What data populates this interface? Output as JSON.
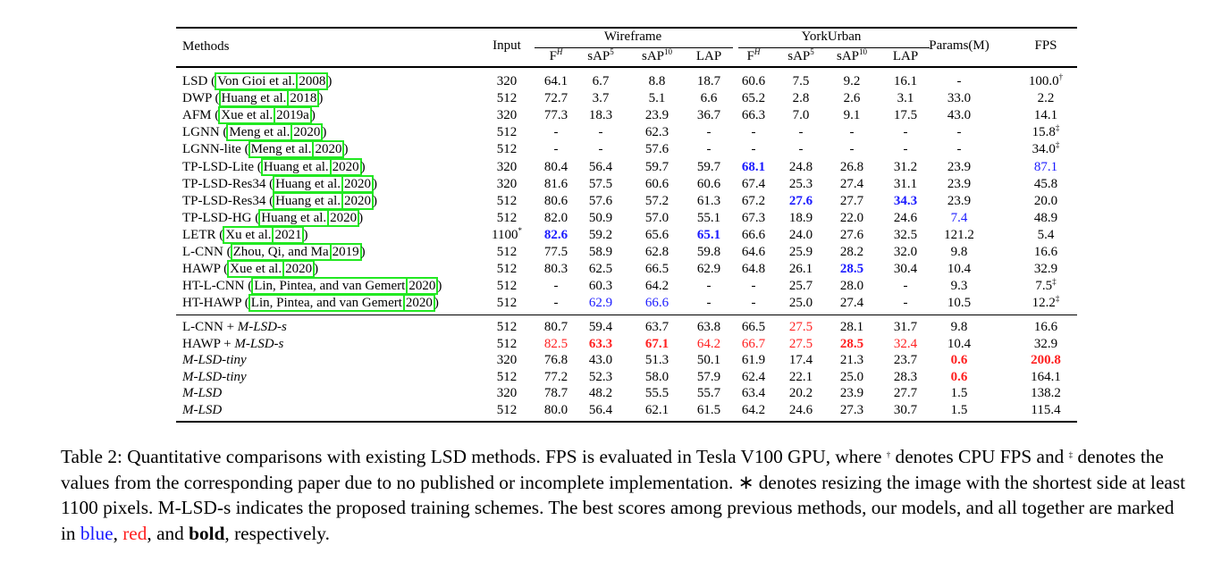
{
  "table": {
    "headers": {
      "methods": "Methods",
      "input": "Input",
      "wireframe": "Wireframe",
      "yorkurban": "YorkUrban",
      "params": "Params(M)",
      "fps": "FPS",
      "sub": [
        {
          "base": "F",
          "sup": "H"
        },
        {
          "base": "sAP",
          "sup": "5"
        },
        {
          "base": "sAP",
          "sup": "10"
        },
        {
          "base": "LAP",
          "sup": ""
        },
        {
          "base": "F",
          "sup": "H"
        },
        {
          "base": "sAP",
          "sup": "5"
        },
        {
          "base": "sAP",
          "sup": "10"
        },
        {
          "base": "LAP",
          "sup": ""
        }
      ]
    },
    "section1": [
      {
        "name": "LSD",
        "author": "Von Gioi et al.",
        "year": "2008",
        "cells": [
          {
            "v": "320"
          },
          {
            "v": "64.1"
          },
          {
            "v": "6.7"
          },
          {
            "v": "8.8"
          },
          {
            "v": "18.7"
          },
          {
            "v": "60.6"
          },
          {
            "v": "7.5"
          },
          {
            "v": "9.2"
          },
          {
            "v": "16.1"
          },
          {
            "v": "-"
          },
          {
            "v": "100.0",
            "sup": "†"
          }
        ]
      },
      {
        "name": "DWP",
        "author": "Huang et al.",
        "year": "2018",
        "cells": [
          {
            "v": "512"
          },
          {
            "v": "72.7"
          },
          {
            "v": "3.7"
          },
          {
            "v": "5.1"
          },
          {
            "v": "6.6"
          },
          {
            "v": "65.2"
          },
          {
            "v": "2.8"
          },
          {
            "v": "2.6"
          },
          {
            "v": "3.1"
          },
          {
            "v": "33.0"
          },
          {
            "v": "2.2"
          }
        ]
      },
      {
        "name": "AFM",
        "author": "Xue et al.",
        "year": "2019a",
        "cells": [
          {
            "v": "320"
          },
          {
            "v": "77.3"
          },
          {
            "v": "18.3"
          },
          {
            "v": "23.9"
          },
          {
            "v": "36.7"
          },
          {
            "v": "66.3"
          },
          {
            "v": "7.0"
          },
          {
            "v": "9.1"
          },
          {
            "v": "17.5"
          },
          {
            "v": "43.0"
          },
          {
            "v": "14.1"
          }
        ]
      },
      {
        "name": "LGNN",
        "author": "Meng et al.",
        "year": "2020",
        "cells": [
          {
            "v": "512"
          },
          {
            "v": "-"
          },
          {
            "v": "-"
          },
          {
            "v": "62.3"
          },
          {
            "v": "-"
          },
          {
            "v": "-"
          },
          {
            "v": "-"
          },
          {
            "v": "-"
          },
          {
            "v": "-"
          },
          {
            "v": "-"
          },
          {
            "v": "15.8",
            "sup": "‡"
          }
        ]
      },
      {
        "name": "LGNN-lite",
        "author": "Meng et al.",
        "year": "2020",
        "cells": [
          {
            "v": "512"
          },
          {
            "v": "-"
          },
          {
            "v": "-"
          },
          {
            "v": "57.6"
          },
          {
            "v": "-"
          },
          {
            "v": "-"
          },
          {
            "v": "-"
          },
          {
            "v": "-"
          },
          {
            "v": "-"
          },
          {
            "v": "-"
          },
          {
            "v": "34.0",
            "sup": "‡"
          }
        ]
      },
      {
        "name": "TP-LSD-Lite",
        "author": "Huang et al.",
        "year": "2020",
        "cells": [
          {
            "v": "320"
          },
          {
            "v": "80.4"
          },
          {
            "v": "56.4"
          },
          {
            "v": "59.7"
          },
          {
            "v": "59.7"
          },
          {
            "v": "68.1",
            "s": "blue bold"
          },
          {
            "v": "24.8"
          },
          {
            "v": "26.8"
          },
          {
            "v": "31.2"
          },
          {
            "v": "23.9"
          },
          {
            "v": "87.1",
            "s": "blue"
          }
        ]
      },
      {
        "name": "TP-LSD-Res34",
        "author": "Huang et al.",
        "year": "2020",
        "cells": [
          {
            "v": "320"
          },
          {
            "v": "81.6"
          },
          {
            "v": "57.5"
          },
          {
            "v": "60.6"
          },
          {
            "v": "60.6"
          },
          {
            "v": "67.4"
          },
          {
            "v": "25.3"
          },
          {
            "v": "27.4"
          },
          {
            "v": "31.1"
          },
          {
            "v": "23.9"
          },
          {
            "v": "45.8"
          }
        ]
      },
      {
        "name": "TP-LSD-Res34",
        "author": "Huang et al.",
        "year": "2020",
        "cells": [
          {
            "v": "512"
          },
          {
            "v": "80.6"
          },
          {
            "v": "57.6"
          },
          {
            "v": "57.2"
          },
          {
            "v": "61.3"
          },
          {
            "v": "67.2"
          },
          {
            "v": "27.6",
            "s": "blue bold"
          },
          {
            "v": "27.7"
          },
          {
            "v": "34.3",
            "s": "blue bold"
          },
          {
            "v": "23.9"
          },
          {
            "v": "20.0"
          }
        ]
      },
      {
        "name": "TP-LSD-HG",
        "author": "Huang et al.",
        "year": "2020",
        "cells": [
          {
            "v": "512"
          },
          {
            "v": "82.0"
          },
          {
            "v": "50.9"
          },
          {
            "v": "57.0"
          },
          {
            "v": "55.1"
          },
          {
            "v": "67.3"
          },
          {
            "v": "18.9"
          },
          {
            "v": "22.0"
          },
          {
            "v": "24.6"
          },
          {
            "v": "7.4",
            "s": "blue"
          },
          {
            "v": "48.9"
          }
        ]
      },
      {
        "name": "LETR",
        "author": "Xu et al.",
        "year": "2021",
        "cells": [
          {
            "v": "1100",
            "sup": "*"
          },
          {
            "v": "82.6",
            "s": "blue bold"
          },
          {
            "v": "59.2"
          },
          {
            "v": "65.6"
          },
          {
            "v": "65.1",
            "s": "blue bold"
          },
          {
            "v": "66.6"
          },
          {
            "v": "24.0"
          },
          {
            "v": "27.6"
          },
          {
            "v": "32.5"
          },
          {
            "v": "121.2"
          },
          {
            "v": "5.4"
          }
        ]
      },
      {
        "name": "L-CNN",
        "author": "Zhou, Qi, and Ma",
        "year": "2019",
        "cells": [
          {
            "v": "512"
          },
          {
            "v": "77.5"
          },
          {
            "v": "58.9"
          },
          {
            "v": "62.8"
          },
          {
            "v": "59.8"
          },
          {
            "v": "64.6"
          },
          {
            "v": "25.9"
          },
          {
            "v": "28.2"
          },
          {
            "v": "32.0"
          },
          {
            "v": "9.8"
          },
          {
            "v": "16.6"
          }
        ]
      },
      {
        "name": "HAWP",
        "author": "Xue et al.",
        "year": "2020",
        "cells": [
          {
            "v": "512"
          },
          {
            "v": "80.3"
          },
          {
            "v": "62.5"
          },
          {
            "v": "66.5"
          },
          {
            "v": "62.9"
          },
          {
            "v": "64.8"
          },
          {
            "v": "26.1"
          },
          {
            "v": "28.5",
            "s": "blue bold"
          },
          {
            "v": "30.4"
          },
          {
            "v": "10.4"
          },
          {
            "v": "32.9"
          }
        ]
      },
      {
        "name": "HT-L-CNN",
        "author": "Lin, Pintea, and van Gemert",
        "year": "2020",
        "cells": [
          {
            "v": "512"
          },
          {
            "v": "-"
          },
          {
            "v": "60.3"
          },
          {
            "v": "64.2"
          },
          {
            "v": "-"
          },
          {
            "v": "-"
          },
          {
            "v": "25.7"
          },
          {
            "v": "28.0"
          },
          {
            "v": "-"
          },
          {
            "v": "9.3"
          },
          {
            "v": "7.5",
            "sup": "‡"
          }
        ]
      },
      {
        "name": "HT-HAWP",
        "author": "Lin, Pintea, and van Gemert",
        "year": "2020",
        "cells": [
          {
            "v": "512"
          },
          {
            "v": "-"
          },
          {
            "v": "62.9",
            "s": "blue"
          },
          {
            "v": "66.6",
            "s": "blue"
          },
          {
            "v": "-"
          },
          {
            "v": "-"
          },
          {
            "v": "25.0"
          },
          {
            "v": "27.4"
          },
          {
            "v": "-"
          },
          {
            "v": "10.5"
          },
          {
            "v": "12.2",
            "sup": "‡"
          }
        ]
      }
    ],
    "section2": [
      {
        "name": "L-CNN + ",
        "name_it": "M-LSD-s",
        "cells": [
          {
            "v": "512"
          },
          {
            "v": "80.7"
          },
          {
            "v": "59.4"
          },
          {
            "v": "63.7"
          },
          {
            "v": "63.8"
          },
          {
            "v": "66.5"
          },
          {
            "v": "27.5",
            "s": "red"
          },
          {
            "v": "28.1"
          },
          {
            "v": "31.7"
          },
          {
            "v": "9.8"
          },
          {
            "v": "16.6"
          }
        ]
      },
      {
        "name": "HAWP + ",
        "name_it": "M-LSD-s",
        "cells": [
          {
            "v": "512"
          },
          {
            "v": "82.5",
            "s": "red"
          },
          {
            "v": "63.3",
            "s": "red bold"
          },
          {
            "v": "67.1",
            "s": "red bold"
          },
          {
            "v": "64.2",
            "s": "red"
          },
          {
            "v": "66.7",
            "s": "red"
          },
          {
            "v": "27.5",
            "s": "red"
          },
          {
            "v": "28.5",
            "s": "red bold"
          },
          {
            "v": "32.4",
            "s": "red"
          },
          {
            "v": "10.4"
          },
          {
            "v": "32.9"
          }
        ]
      },
      {
        "name": "",
        "name_it": "M-LSD-tiny",
        "cells": [
          {
            "v": "320"
          },
          {
            "v": "76.8"
          },
          {
            "v": "43.0"
          },
          {
            "v": "51.3"
          },
          {
            "v": "50.1"
          },
          {
            "v": "61.9"
          },
          {
            "v": "17.4"
          },
          {
            "v": "21.3"
          },
          {
            "v": "23.7"
          },
          {
            "v": "0.6",
            "s": "red bold"
          },
          {
            "v": "200.8",
            "s": "red bold"
          }
        ]
      },
      {
        "name": "",
        "name_it": "M-LSD-tiny",
        "cells": [
          {
            "v": "512"
          },
          {
            "v": "77.2"
          },
          {
            "v": "52.3"
          },
          {
            "v": "58.0"
          },
          {
            "v": "57.9"
          },
          {
            "v": "62.4"
          },
          {
            "v": "22.1"
          },
          {
            "v": "25.0"
          },
          {
            "v": "28.3"
          },
          {
            "v": "0.6",
            "s": "red bold"
          },
          {
            "v": "164.1"
          }
        ]
      },
      {
        "name": "",
        "name_it": "M-LSD",
        "cells": [
          {
            "v": "320"
          },
          {
            "v": "78.7"
          },
          {
            "v": "48.2"
          },
          {
            "v": "55.5"
          },
          {
            "v": "55.7"
          },
          {
            "v": "63.4"
          },
          {
            "v": "20.2"
          },
          {
            "v": "23.9"
          },
          {
            "v": "27.7"
          },
          {
            "v": "1.5"
          },
          {
            "v": "138.2"
          }
        ]
      },
      {
        "name": "",
        "name_it": "M-LSD",
        "cells": [
          {
            "v": "512"
          },
          {
            "v": "80.0"
          },
          {
            "v": "56.4"
          },
          {
            "v": "62.1"
          },
          {
            "v": "61.5"
          },
          {
            "v": "64.2"
          },
          {
            "v": "24.6"
          },
          {
            "v": "27.3"
          },
          {
            "v": "30.7"
          },
          {
            "v": "1.5"
          },
          {
            "v": "115.4"
          }
        ]
      }
    ]
  },
  "caption": {
    "p1": "Table 2: Quantitative comparisons with existing LSD methods. FPS is evaluated in Tesla V100 GPU, where ",
    "dagger": "†",
    "p2": " denotes CPU FPS and ",
    "ddagger": "‡",
    "p3": " denotes the values from the corresponding paper due to no published or incomplete implementation. ∗ denotes resizing the image with the shortest side at least 1100 pixels. M-LSD-s indicates the proposed training schemes. The best scores among previous methods, our models, and all together are marked in ",
    "blue": "blue",
    "p4": ", ",
    "red": "red",
    "p5": ", and ",
    "bold": "bold",
    "p6": ", respectively."
  },
  "colors": {
    "blue": "#1a1aff",
    "red": "#ff2020",
    "citation_box": "#22e822"
  }
}
